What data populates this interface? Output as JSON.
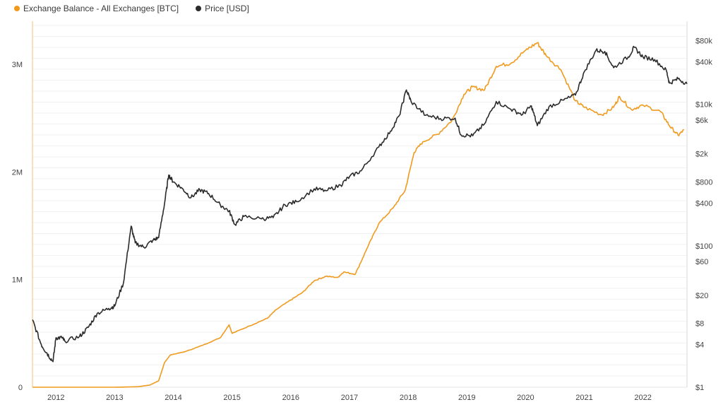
{
  "chart_data": {
    "type": "line",
    "legend": [
      {
        "name": "Exchange Balance - All Exchanges [BTC]",
        "color": "#f09a1e"
      },
      {
        "name": "Price [USD]",
        "color": "#2b2b2b"
      }
    ],
    "x_ticks": [
      "2012",
      "2013",
      "2014",
      "2015",
      "2016",
      "2017",
      "2018",
      "2019",
      "2020",
      "2021",
      "2022"
    ],
    "y_left_ticks": [
      {
        "label": "0",
        "value": 0
      },
      {
        "label": "1M",
        "value": 1000000
      },
      {
        "label": "2M",
        "value": 2000000
      },
      {
        "label": "3M",
        "value": 3000000
      }
    ],
    "y_right_ticks": [
      {
        "label": "$1",
        "value": 1
      },
      {
        "label": "$4",
        "value": 4
      },
      {
        "label": "$8",
        "value": 8
      },
      {
        "label": "$20",
        "value": 20
      },
      {
        "label": "$60",
        "value": 60
      },
      {
        "label": "$100",
        "value": 100
      },
      {
        "label": "$400",
        "value": 400
      },
      {
        "label": "$800",
        "value": 800
      },
      {
        "label": "$2k",
        "value": 2000
      },
      {
        "label": "$6k",
        "value": 6000
      },
      {
        "label": "$10k",
        "value": 10000
      },
      {
        "label": "$40k",
        "value": 40000
      },
      {
        "label": "$80k",
        "value": 80000
      }
    ],
    "y_left_range": [
      0,
      3400000
    ],
    "y_right_range": [
      1,
      150000
    ],
    "y_right_scale": "log",
    "x_range": [
      2011.6,
      2022.75
    ],
    "series": [
      {
        "name": "Exchange Balance - All Exchanges [BTC]",
        "axis": "left",
        "color": "#f09a1e",
        "points": [
          [
            2011.6,
            0
          ],
          [
            2012.0,
            0
          ],
          [
            2012.5,
            0
          ],
          [
            2013.0,
            0
          ],
          [
            2013.2,
            2000
          ],
          [
            2013.4,
            5000
          ],
          [
            2013.6,
            20000
          ],
          [
            2013.75,
            60000
          ],
          [
            2013.85,
            230000
          ],
          [
            2013.95,
            300000
          ],
          [
            2014.2,
            330000
          ],
          [
            2014.5,
            390000
          ],
          [
            2014.8,
            460000
          ],
          [
            2014.95,
            580000
          ],
          [
            2015.0,
            500000
          ],
          [
            2015.3,
            570000
          ],
          [
            2015.6,
            640000
          ],
          [
            2015.75,
            720000
          ],
          [
            2016.0,
            810000
          ],
          [
            2016.2,
            880000
          ],
          [
            2016.4,
            990000
          ],
          [
            2016.6,
            1030000
          ],
          [
            2016.8,
            1020000
          ],
          [
            2016.9,
            1070000
          ],
          [
            2017.1,
            1050000
          ],
          [
            2017.3,
            1290000
          ],
          [
            2017.5,
            1520000
          ],
          [
            2017.75,
            1670000
          ],
          [
            2017.95,
            1830000
          ],
          [
            2018.1,
            2180000
          ],
          [
            2018.25,
            2280000
          ],
          [
            2018.5,
            2350000
          ],
          [
            2018.75,
            2480000
          ],
          [
            2018.95,
            2720000
          ],
          [
            2019.1,
            2790000
          ],
          [
            2019.3,
            2760000
          ],
          [
            2019.5,
            2980000
          ],
          [
            2019.75,
            3010000
          ],
          [
            2020.0,
            3130000
          ],
          [
            2020.2,
            3200000
          ],
          [
            2020.35,
            3080000
          ],
          [
            2020.6,
            2950000
          ],
          [
            2020.85,
            2660000
          ],
          [
            2021.0,
            2600000
          ],
          [
            2021.3,
            2530000
          ],
          [
            2021.5,
            2600000
          ],
          [
            2021.6,
            2700000
          ],
          [
            2021.8,
            2580000
          ],
          [
            2022.0,
            2620000
          ],
          [
            2022.3,
            2560000
          ],
          [
            2022.45,
            2430000
          ],
          [
            2022.6,
            2340000
          ],
          [
            2022.7,
            2390000
          ]
        ]
      },
      {
        "name": "Price [USD]",
        "axis": "right",
        "color": "#2b2b2b",
        "points": [
          [
            2011.6,
            9
          ],
          [
            2011.75,
            4
          ],
          [
            2011.85,
            3
          ],
          [
            2011.95,
            2.3
          ],
          [
            2012.0,
            5
          ],
          [
            2012.1,
            5
          ],
          [
            2012.15,
            4.5
          ],
          [
            2012.4,
            5.2
          ],
          [
            2012.55,
            7
          ],
          [
            2012.7,
            11
          ],
          [
            2012.9,
            13
          ],
          [
            2013.0,
            14
          ],
          [
            2013.15,
            30
          ],
          [
            2013.28,
            190
          ],
          [
            2013.35,
            110
          ],
          [
            2013.5,
            95
          ],
          [
            2013.65,
            120
          ],
          [
            2013.75,
            130
          ],
          [
            2013.85,
            400
          ],
          [
            2013.92,
            1000
          ],
          [
            2014.0,
            800
          ],
          [
            2014.15,
            650
          ],
          [
            2014.3,
            480
          ],
          [
            2014.45,
            620
          ],
          [
            2014.6,
            550
          ],
          [
            2014.8,
            380
          ],
          [
            2014.95,
            310
          ],
          [
            2015.05,
            200
          ],
          [
            2015.2,
            260
          ],
          [
            2015.5,
            240
          ],
          [
            2015.7,
            250
          ],
          [
            2015.9,
            380
          ],
          [
            2016.1,
            420
          ],
          [
            2016.4,
            640
          ],
          [
            2016.6,
            600
          ],
          [
            2016.85,
            720
          ],
          [
            2017.0,
            950
          ],
          [
            2017.2,
            1150
          ],
          [
            2017.5,
            2500
          ],
          [
            2017.7,
            4200
          ],
          [
            2017.85,
            7000
          ],
          [
            2017.97,
            16000
          ],
          [
            2018.05,
            11000
          ],
          [
            2018.3,
            7000
          ],
          [
            2018.55,
            6300
          ],
          [
            2018.8,
            6400
          ],
          [
            2018.9,
            3700
          ],
          [
            2019.1,
            3600
          ],
          [
            2019.3,
            5300
          ],
          [
            2019.5,
            11000
          ],
          [
            2019.75,
            8500
          ],
          [
            2019.95,
            7200
          ],
          [
            2020.1,
            9500
          ],
          [
            2020.2,
            5000
          ],
          [
            2020.4,
            9300
          ],
          [
            2020.65,
            11500
          ],
          [
            2020.85,
            13500
          ],
          [
            2021.0,
            29000
          ],
          [
            2021.2,
            58000
          ],
          [
            2021.35,
            56000
          ],
          [
            2021.5,
            33000
          ],
          [
            2021.75,
            47000
          ],
          [
            2021.85,
            64000
          ],
          [
            2022.0,
            47000
          ],
          [
            2022.2,
            43000
          ],
          [
            2022.4,
            30000
          ],
          [
            2022.45,
            20000
          ],
          [
            2022.6,
            23000
          ],
          [
            2022.75,
            19500
          ]
        ]
      }
    ]
  }
}
